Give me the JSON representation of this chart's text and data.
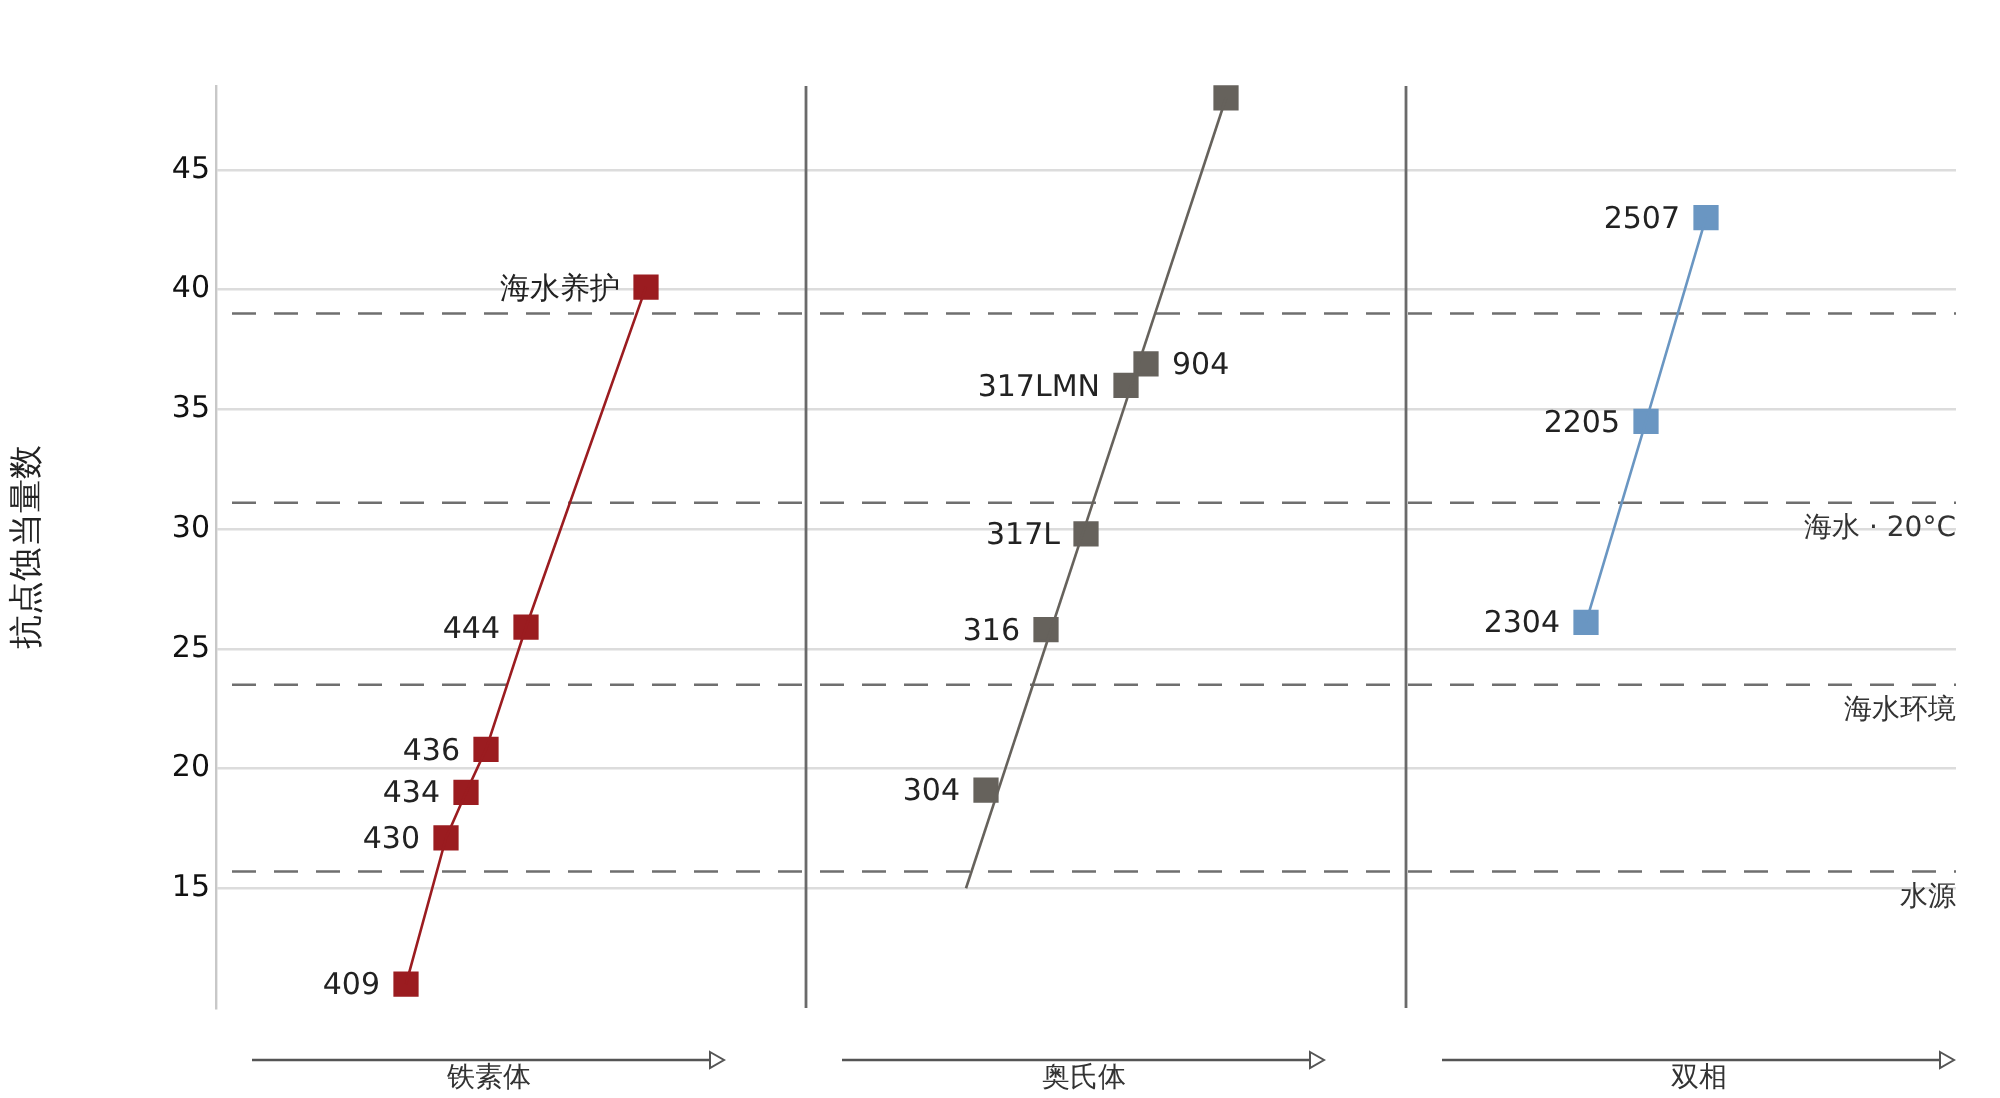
{
  "chart_data": {
    "type": "line",
    "ylabel": "抗点蚀当量数",
    "categories": [
      null,
      null,
      null,
      null,
      null,
      null,
      null,
      null,
      null,
      null,
      null,
      null,
      null,
      null,
      null,
      null,
      null,
      null,
      null,
      null,
      null,
      null,
      null,
      null,
      null,
      null,
      null,
      null,
      null,
      null,
      null,
      null,
      null,
      null,
      null,
      null,
      null,
      null,
      null,
      null,
      null,
      null,
      null,
      null,
      null,
      null,
      null,
      null,
      null,
      null,
      null,
      null,
      null,
      null,
      null,
      null,
      null,
      null,
      null,
      null,
      null,
      null,
      null,
      null,
      null,
      null,
      null,
      null,
      null,
      null,
      null,
      null,
      null,
      null,
      null,
      null,
      null,
      null,
      null,
      null,
      null,
      null,
      null,
      null,
      null,
      null,
      null
    ],
    "series": [
      {
        "color": "#9b1c20",
        "marker": "none",
        "values": [
          null,
          null,
          null,
          null,
          null,
          null,
          null,
          null,
          null,
          11.0,
          null,
          17.1,
          19.0,
          20.8,
          null,
          25.9,
          null,
          null,
          null,
          null,
          null,
          40.1,
          null,
          null,
          null,
          null,
          null,
          null,
          null,
          null,
          null,
          null,
          null,
          null,
          null,
          null,
          null,
          null,
          null,
          null,
          null,
          null,
          null,
          null,
          null,
          null,
          null,
          null,
          null,
          null,
          null,
          null,
          null,
          null,
          null,
          null,
          null,
          null,
          null,
          null,
          null,
          null,
          null,
          null,
          null,
          null,
          null,
          null,
          null,
          null,
          null,
          null,
          null,
          null,
          null,
          null,
          null,
          null,
          null,
          null,
          null,
          null,
          null,
          null,
          null,
          null,
          null
        ]
      },
      {
        "color": "#66625c",
        "marker": "none",
        "values": [
          null,
          null,
          null,
          null,
          null,
          null,
          null,
          null,
          null,
          null,
          null,
          null,
          null,
          null,
          null,
          null,
          null,
          null,
          null,
          null,
          null,
          null,
          null,
          null,
          null,
          null,
          null,
          null,
          null,
          null,
          null,
          null,
          null,
          null,
          null,
          null,
          null,
          15.0,
          null,
          null,
          null,
          null,
          null,
          null,
          null,
          null,
          null,
          null,
          null,
          null,
          48.0,
          null,
          null,
          null,
          null,
          null,
          null,
          null,
          null,
          null,
          null,
          null,
          null,
          null,
          null,
          null,
          null,
          null,
          null,
          null,
          null,
          null,
          null,
          null,
          null,
          null,
          null,
          null,
          null,
          null,
          null,
          null,
          null,
          null,
          null,
          null,
          null
        ]
      },
      {
        "color": "#6a96c2",
        "marker": "none",
        "values": [
          null,
          null,
          null,
          null,
          null,
          null,
          null,
          null,
          null,
          null,
          null,
          null,
          null,
          null,
          null,
          null,
          null,
          null,
          null,
          null,
          null,
          null,
          null,
          null,
          null,
          null,
          null,
          null,
          null,
          null,
          null,
          null,
          null,
          null,
          null,
          null,
          null,
          null,
          null,
          null,
          null,
          null,
          null,
          null,
          null,
          null,
          null,
          null,
          null,
          null,
          null,
          null,
          null,
          null,
          null,
          null,
          null,
          null,
          null,
          null,
          null,
          null,
          null,
          null,
          null,
          null,
          null,
          null,
          26.1,
          null,
          null,
          34.5,
          null,
          null,
          43.0,
          null,
          null,
          null,
          null,
          null,
          null,
          null,
          null,
          null,
          null,
          null,
          null
        ]
      },
      {
        "name": "409",
        "color": "#9b1c20",
        "values": [
          null,
          null,
          null,
          null,
          null,
          null,
          null,
          null,
          null,
          11.0,
          null,
          null,
          null,
          null,
          null,
          null,
          null,
          null,
          null,
          null,
          null,
          null,
          null,
          null,
          null,
          null,
          null,
          null,
          null,
          null,
          null,
          null,
          null,
          null,
          null,
          null,
          null,
          null,
          null,
          null,
          null,
          null,
          null,
          null,
          null,
          null,
          null,
          null,
          null,
          null,
          null,
          null,
          null,
          null,
          null,
          null,
          null,
          null,
          null,
          null,
          null,
          null,
          null,
          null,
          null,
          null,
          null,
          null,
          null,
          null,
          null,
          null,
          null,
          null,
          null,
          null,
          null,
          null,
          null,
          null,
          null,
          null,
          null,
          null,
          null,
          null,
          null
        ]
      },
      {
        "name": "430",
        "color": "#9b1c20",
        "values": [
          null,
          null,
          null,
          null,
          null,
          null,
          null,
          null,
          null,
          null,
          null,
          17.1,
          null,
          null,
          null,
          null,
          null,
          null,
          null,
          null,
          null,
          null,
          null,
          null,
          null,
          null,
          null,
          null,
          null,
          null,
          null,
          null,
          null,
          null,
          null,
          null,
          null,
          null,
          null,
          null,
          null,
          null,
          null,
          null,
          null,
          null,
          null,
          null,
          null,
          null,
          null,
          null,
          null,
          null,
          null,
          null,
          null,
          null,
          null,
          null,
          null,
          null,
          null,
          null,
          null,
          null,
          null,
          null,
          null,
          null,
          null,
          null,
          null,
          null,
          null,
          null,
          null,
          null,
          null,
          null,
          null,
          null,
          null,
          null,
          null,
          null,
          null
        ]
      },
      {
        "name": "434",
        "color": "#9b1c20",
        "values": [
          null,
          null,
          null,
          null,
          null,
          null,
          null,
          null,
          null,
          null,
          null,
          null,
          19.0,
          null,
          null,
          null,
          null,
          null,
          null,
          null,
          null,
          null,
          null,
          null,
          null,
          null,
          null,
          null,
          null,
          null,
          null,
          null,
          null,
          null,
          null,
          null,
          null,
          null,
          null,
          null,
          null,
          null,
          null,
          null,
          null,
          null,
          null,
          null,
          null,
          null,
          null,
          null,
          null,
          null,
          null,
          null,
          null,
          null,
          null,
          null,
          null,
          null,
          null,
          null,
          null,
          null,
          null,
          null,
          null,
          null,
          null,
          null,
          null,
          null,
          null,
          null,
          null,
          null,
          null,
          null,
          null,
          null,
          null,
          null,
          null,
          null,
          null
        ]
      },
      {
        "name": "436",
        "color": "#9b1c20",
        "values": [
          null,
          null,
          null,
          null,
          null,
          null,
          null,
          null,
          null,
          null,
          null,
          null,
          null,
          20.8,
          null,
          null,
          null,
          null,
          null,
          null,
          null,
          null,
          null,
          null,
          null,
          null,
          null,
          null,
          null,
          null,
          null,
          null,
          null,
          null,
          null,
          null,
          null,
          null,
          null,
          null,
          null,
          null,
          null,
          null,
          null,
          null,
          null,
          null,
          null,
          null,
          null,
          null,
          null,
          null,
          null,
          null,
          null,
          null,
          null,
          null,
          null,
          null,
          null,
          null,
          null,
          null,
          null,
          null,
          null,
          null,
          null,
          null,
          null,
          null,
          null,
          null,
          null,
          null,
          null,
          null,
          null,
          null,
          null,
          null,
          null,
          null,
          null
        ]
      },
      {
        "name": "444",
        "color": "#9b1c20",
        "values": [
          null,
          null,
          null,
          null,
          null,
          null,
          null,
          null,
          null,
          null,
          null,
          null,
          null,
          null,
          null,
          25.9,
          null,
          null,
          null,
          null,
          null,
          null,
          null,
          null,
          null,
          null,
          null,
          null,
          null,
          null,
          null,
          null,
          null,
          null,
          null,
          null,
          null,
          null,
          null,
          null,
          null,
          null,
          null,
          null,
          null,
          null,
          null,
          null,
          null,
          null,
          null,
          null,
          null,
          null,
          null,
          null,
          null,
          null,
          null,
          null,
          null,
          null,
          null,
          null,
          null,
          null,
          null,
          null,
          null,
          null,
          null,
          null,
          null,
          null,
          null,
          null,
          null,
          null,
          null,
          null,
          null,
          null,
          null,
          null,
          null,
          null,
          null
        ]
      },
      {
        "name": "海水养护",
        "color": "#9b1c20",
        "values": [
          null,
          null,
          null,
          null,
          null,
          null,
          null,
          null,
          null,
          null,
          null,
          null,
          null,
          null,
          null,
          null,
          null,
          null,
          null,
          null,
          null,
          40.1,
          null,
          null,
          null,
          null,
          null,
          null,
          null,
          null,
          null,
          null,
          null,
          null,
          null,
          null,
          null,
          null,
          null,
          null,
          null,
          null,
          null,
          null,
          null,
          null,
          null,
          null,
          null,
          null,
          null,
          null,
          null,
          null,
          null,
          null,
          null,
          null,
          null,
          null,
          null,
          null,
          null,
          null,
          null,
          null,
          null,
          null,
          null,
          null,
          null,
          null,
          null,
          null,
          null,
          null,
          null,
          null,
          null,
          null,
          null,
          null,
          null,
          null,
          null,
          null,
          null
        ]
      },
      {
        "name": "304",
        "color": "#66625c",
        "values": [
          null,
          null,
          null,
          null,
          null,
          null,
          null,
          null,
          null,
          null,
          null,
          null,
          null,
          null,
          null,
          null,
          null,
          null,
          null,
          null,
          null,
          null,
          null,
          null,
          null,
          null,
          null,
          null,
          null,
          null,
          null,
          null,
          null,
          null,
          null,
          null,
          null,
          null,
          19.1,
          null,
          null,
          null,
          null,
          null,
          null,
          null,
          null,
          null,
          null,
          null,
          null,
          null,
          null,
          null,
          null,
          null,
          null,
          null,
          null,
          null,
          null,
          null,
          null,
          null,
          null,
          null,
          null,
          null,
          null,
          null,
          null,
          null,
          null,
          null,
          null,
          null,
          null,
          null,
          null,
          null,
          null,
          null,
          null,
          null,
          null,
          null,
          null
        ]
      },
      {
        "name": "316",
        "color": "#66625c",
        "values": [
          null,
          null,
          null,
          null,
          null,
          null,
          null,
          null,
          null,
          null,
          null,
          null,
          null,
          null,
          null,
          null,
          null,
          null,
          null,
          null,
          null,
          null,
          null,
          null,
          null,
          null,
          null,
          null,
          null,
          null,
          null,
          null,
          null,
          null,
          null,
          null,
          null,
          null,
          null,
          null,
          null,
          25.8,
          null,
          null,
          null,
          null,
          null,
          null,
          null,
          null,
          null,
          null,
          null,
          null,
          null,
          null,
          null,
          null,
          null,
          null,
          null,
          null,
          null,
          null,
          null,
          null,
          null,
          null,
          null,
          null,
          null,
          null,
          null,
          null,
          null,
          null,
          null,
          null,
          null,
          null,
          null,
          null,
          null,
          null,
          null,
          null,
          null
        ]
      },
      {
        "name": "317L",
        "color": "#66625c",
        "values": [
          null,
          null,
          null,
          null,
          null,
          null,
          null,
          null,
          null,
          null,
          null,
          null,
          null,
          null,
          null,
          null,
          null,
          null,
          null,
          null,
          null,
          null,
          null,
          null,
          null,
          null,
          null,
          null,
          null,
          null,
          null,
          null,
          null,
          null,
          null,
          null,
          null,
          null,
          null,
          null,
          null,
          null,
          null,
          29.8,
          null,
          null,
          null,
          null,
          null,
          null,
          null,
          null,
          null,
          null,
          null,
          null,
          null,
          null,
          null,
          null,
          null,
          null,
          null,
          null,
          null,
          null,
          null,
          null,
          null,
          null,
          null,
          null,
          null,
          null,
          null,
          null,
          null,
          null,
          null,
          null,
          null,
          null,
          null,
          null,
          null,
          null,
          null
        ]
      },
      {
        "name": "317LMN",
        "color": "#66625c",
        "values": [
          null,
          null,
          null,
          null,
          null,
          null,
          null,
          null,
          null,
          null,
          null,
          null,
          null,
          null,
          null,
          null,
          null,
          null,
          null,
          null,
          null,
          null,
          null,
          null,
          null,
          null,
          null,
          null,
          null,
          null,
          null,
          null,
          null,
          null,
          null,
          null,
          null,
          null,
          null,
          null,
          null,
          null,
          null,
          null,
          null,
          36.0,
          null,
          null,
          null,
          null,
          null,
          null,
          null,
          null,
          null,
          null,
          null,
          null,
          null,
          null,
          null,
          null,
          null,
          null,
          null,
          null,
          null,
          null,
          null,
          null,
          null,
          null,
          null,
          null,
          null,
          null,
          null,
          null,
          null,
          null,
          null,
          null,
          null,
          null,
          null,
          null,
          null
        ]
      },
      {
        "name": "904",
        "color": "#66625c",
        "values": [
          null,
          null,
          null,
          null,
          null,
          null,
          null,
          null,
          null,
          null,
          null,
          null,
          null,
          null,
          null,
          null,
          null,
          null,
          null,
          null,
          null,
          null,
          null,
          null,
          null,
          null,
          null,
          null,
          null,
          null,
          null,
          null,
          null,
          null,
          null,
          null,
          null,
          null,
          null,
          null,
          null,
          null,
          null,
          null,
          null,
          null,
          36.9,
          null,
          null,
          null,
          null,
          null,
          null,
          null,
          null,
          null,
          null,
          null,
          null,
          null,
          null,
          null,
          null,
          null,
          null,
          null,
          null,
          null,
          null,
          null,
          null,
          null,
          null,
          null,
          null,
          null,
          null,
          null,
          null,
          null,
          null,
          null,
          null,
          null,
          null,
          null,
          null
        ]
      },
      {
        "color": "#66625c",
        "values": [
          null,
          null,
          null,
          null,
          null,
          null,
          null,
          null,
          null,
          null,
          null,
          null,
          null,
          null,
          null,
          null,
          null,
          null,
          null,
          null,
          null,
          null,
          null,
          null,
          null,
          null,
          null,
          null,
          null,
          null,
          null,
          null,
          null,
          null,
          null,
          null,
          null,
          null,
          null,
          null,
          null,
          null,
          null,
          null,
          null,
          null,
          null,
          null,
          null,
          null,
          48.0,
          null,
          null,
          null,
          null,
          null,
          null,
          null,
          null,
          null,
          null,
          null,
          null,
          null,
          null,
          null,
          null,
          null,
          null,
          null,
          null,
          null,
          null,
          null,
          null,
          null,
          null,
          null,
          null,
          null,
          null,
          null,
          null,
          null,
          null,
          null,
          null
        ]
      },
      {
        "name": "2304",
        "color": "#6a96c2",
        "values": [
          null,
          null,
          null,
          null,
          null,
          null,
          null,
          null,
          null,
          null,
          null,
          null,
          null,
          null,
          null,
          null,
          null,
          null,
          null,
          null,
          null,
          null,
          null,
          null,
          null,
          null,
          null,
          null,
          null,
          null,
          null,
          null,
          null,
          null,
          null,
          null,
          null,
          null,
          null,
          null,
          null,
          null,
          null,
          null,
          null,
          null,
          null,
          null,
          null,
          null,
          null,
          null,
          null,
          null,
          null,
          null,
          null,
          null,
          null,
          null,
          null,
          null,
          null,
          null,
          null,
          null,
          null,
          null,
          26.1,
          null,
          null,
          null,
          null,
          null,
          null,
          null,
          null,
          null,
          null,
          null,
          null,
          null,
          null,
          null,
          null,
          null,
          null
        ]
      },
      {
        "name": "2205",
        "color": "#6a96c2",
        "values": [
          null,
          null,
          null,
          null,
          null,
          null,
          null,
          null,
          null,
          null,
          null,
          null,
          null,
          null,
          null,
          null,
          null,
          null,
          null,
          null,
          null,
          null,
          null,
          null,
          null,
          null,
          null,
          null,
          null,
          null,
          null,
          null,
          null,
          null,
          null,
          null,
          null,
          null,
          null,
          null,
          null,
          null,
          null,
          null,
          null,
          null,
          null,
          null,
          null,
          null,
          null,
          null,
          null,
          null,
          null,
          null,
          null,
          null,
          null,
          null,
          null,
          null,
          null,
          null,
          null,
          null,
          null,
          null,
          null,
          null,
          null,
          34.5,
          null,
          null,
          null,
          null,
          null,
          null,
          null,
          null,
          null,
          null,
          null,
          null,
          null,
          null,
          null
        ]
      },
      {
        "name": "2507",
        "color": "#6a96c2",
        "values": [
          null,
          null,
          null,
          null,
          null,
          null,
          null,
          null,
          null,
          null,
          null,
          null,
          null,
          null,
          null,
          null,
          null,
          null,
          null,
          null,
          null,
          null,
          null,
          null,
          null,
          null,
          null,
          null,
          null,
          null,
          null,
          null,
          null,
          null,
          null,
          null,
          null,
          null,
          null,
          null,
          null,
          null,
          null,
          null,
          null,
          null,
          null,
          null,
          null,
          null,
          null,
          null,
          null,
          null,
          null,
          null,
          null,
          null,
          null,
          null,
          null,
          null,
          null,
          null,
          null,
          null,
          null,
          null,
          null,
          null,
          null,
          null,
          null,
          null,
          43.0,
          null,
          null,
          null,
          null,
          null,
          null,
          null,
          null,
          null,
          null,
          null,
          null
        ]
      }
    ],
    "annotations": [
      "铁素体",
      "奥氏体",
      "双相"
    ],
    "ylim": [
      10,
      48.5
    ],
    "yticks": [
      15,
      20,
      25,
      30,
      35,
      40,
      45
    ],
    "grid": "y",
    "marker": "square",
    "tick_labels": "y",
    "ref_lines": [
      {
        "axis": "y",
        "value": 39.0,
        "line_style": "dashed"
      },
      {
        "axis": "y",
        "value": 31.1,
        "label": "海水 · 20°C",
        "line_style": "dashed"
      },
      {
        "axis": "y",
        "value": 23.5,
        "label": "海水环境",
        "line_style": "dashed"
      },
      {
        "axis": "y",
        "value": 15.7,
        "label": "水源",
        "line_style": "dashed"
      }
    ]
  }
}
